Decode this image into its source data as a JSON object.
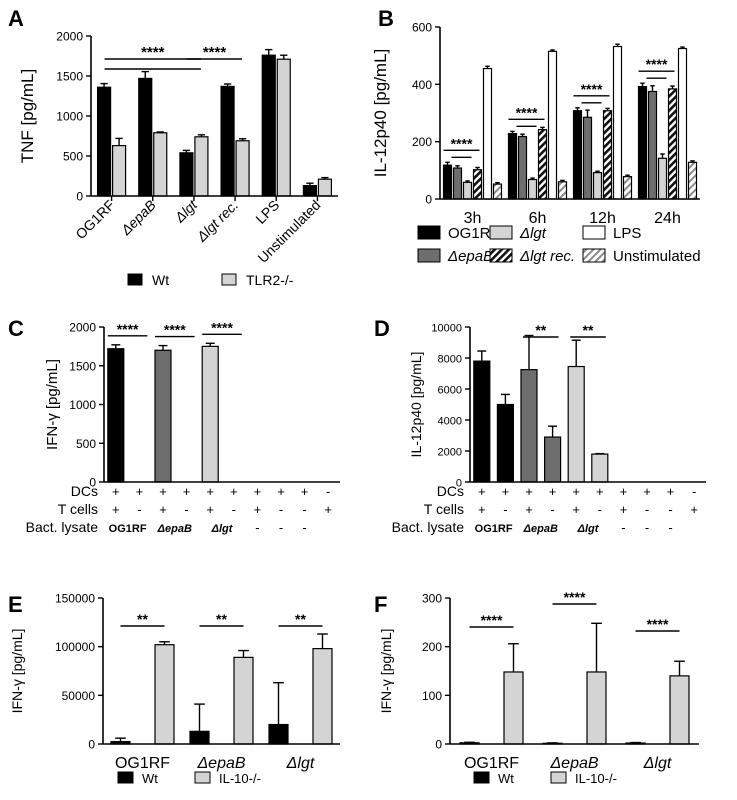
{
  "colors": {
    "wt": "#000000",
    "ko": "#d4d4d4",
    "dark_grey": "#6e6e6e",
    "white": "#ffffff",
    "black": "#000000"
  },
  "chart_data": [
    {
      "panel": "A",
      "type": "bar",
      "ylabel": "TNF [pg/mL]",
      "ylim": [
        0,
        2000
      ],
      "yticks": [
        "0",
        "500",
        "1000",
        "1500",
        "2000"
      ],
      "categories": [
        "OG1RF",
        "ΔepaB",
        "Δlgt",
        "Δlgt rec.",
        "LPS",
        "Unstimulated"
      ],
      "categories_italic": [
        false,
        true,
        true,
        true,
        false,
        false
      ],
      "series": [
        {
          "name": "Wt",
          "values": [
            1360,
            1470,
            540,
            1370,
            1760,
            130
          ],
          "errors": [
            45,
            85,
            30,
            30,
            70,
            30
          ]
        },
        {
          "name": "TLR2-/-",
          "values": [
            630,
            790,
            740,
            690,
            1710,
            210
          ],
          "errors": [
            90,
            10,
            25,
            25,
            50,
            20
          ]
        }
      ],
      "significance": [
        "****",
        "****"
      ],
      "legend": [
        "Wt",
        "TLR2-/-"
      ]
    },
    {
      "panel": "B",
      "type": "bar",
      "ylabel": "IL-12p40 [pg/mL]",
      "ylim": [
        0,
        600
      ],
      "yticks": [
        "0",
        "200",
        "400",
        "600"
      ],
      "categories": [
        "3h",
        "6h",
        "12h",
        "24h"
      ],
      "series": [
        {
          "name": "OG1RF",
          "values": [
            118,
            228,
            308,
            392
          ],
          "errors": [
            10,
            8,
            10,
            12
          ]
        },
        {
          "name": "ΔepaB",
          "values": [
            108,
            218,
            285,
            375
          ],
          "errors": [
            8,
            8,
            25,
            20
          ]
        },
        {
          "name": "Δlgt",
          "values": [
            58,
            68,
            92,
            142
          ],
          "errors": [
            5,
            5,
            5,
            15
          ]
        },
        {
          "name": "Δlgt rec.",
          "values": [
            102,
            242,
            308,
            384
          ],
          "errors": [
            8,
            8,
            8,
            10
          ]
        },
        {
          "name": "LPS",
          "values": [
            455,
            515,
            532,
            525
          ],
          "errors": [
            8,
            5,
            8,
            5
          ]
        },
        {
          "name": "Unstimulated",
          "values": [
            52,
            60,
            78,
            128
          ],
          "errors": [
            5,
            5,
            5,
            5
          ]
        }
      ],
      "significance": [
        "****",
        "****",
        "****",
        "****"
      ],
      "legend": [
        "OG1RF",
        "ΔepaB",
        "Δlgt",
        "Δlgt rec.",
        "LPS",
        "Unstimulated"
      ],
      "legend_italic": [
        false,
        true,
        true,
        true,
        false,
        false
      ]
    },
    {
      "panel": "C",
      "type": "bar",
      "ylabel": "IFN-γ [pg/mL]",
      "ylim": [
        0,
        2000
      ],
      "yticks": [
        "0",
        "500",
        "1000",
        "1500",
        "2000"
      ],
      "values": [
        1720,
        0,
        1700,
        0,
        1750,
        0,
        0,
        0,
        0,
        0
      ],
      "errors": [
        50,
        0,
        60,
        0,
        40,
        0,
        0,
        0,
        0,
        0
      ],
      "bar_color_keys": [
        "black",
        "black",
        "dark_grey",
        "dark_grey",
        "ko",
        "ko",
        "ko",
        "ko",
        "ko",
        "ko"
      ],
      "significance": [
        "****",
        "****",
        "****"
      ],
      "row_labels": [
        "DCs",
        "T cells",
        "Bact. lysate"
      ],
      "rows": [
        [
          "+",
          "+",
          "+",
          "+",
          "+",
          "+",
          "+",
          "+",
          "+",
          "-"
        ],
        [
          "+",
          "-",
          "+",
          "-",
          "+",
          "-",
          "+",
          "-",
          "-",
          "+"
        ]
      ],
      "lysate_labels": [
        "OG1RF",
        "ΔepaB",
        "Δlgt",
        "-",
        "-",
        "-"
      ],
      "lysate_italic": [
        false,
        true,
        true,
        false,
        false,
        false
      ]
    },
    {
      "panel": "D",
      "type": "bar",
      "ylabel": "IL-12p40 [pg/mL]",
      "ylim": [
        0,
        10000
      ],
      "yticks": [
        "0",
        "2000",
        "4000",
        "6000",
        "8000",
        "10000"
      ],
      "values": [
        7800,
        5000,
        7250,
        2900,
        7450,
        1800,
        0,
        0,
        0,
        0
      ],
      "errors": [
        650,
        650,
        2200,
        700,
        1700,
        30,
        0,
        0,
        0,
        0
      ],
      "bar_color_keys": [
        "black",
        "black",
        "dark_grey",
        "dark_grey",
        "ko",
        "ko",
        "ko",
        "ko",
        "ko",
        "ko"
      ],
      "significance": [
        "**",
        "**"
      ],
      "row_labels": [
        "DCs",
        "T cells",
        "Bact. lysate"
      ],
      "rows": [
        [
          "+",
          "+",
          "+",
          "+",
          "+",
          "+",
          "+",
          "+",
          "+",
          "-"
        ],
        [
          "+",
          "-",
          "+",
          "-",
          "+",
          "-",
          "+",
          "-",
          "-",
          "+"
        ]
      ],
      "lysate_labels": [
        "OG1RF",
        "ΔepaB",
        "Δlgt",
        "-",
        "-",
        "-"
      ],
      "lysate_italic": [
        false,
        true,
        true,
        false,
        false,
        false
      ]
    },
    {
      "panel": "E",
      "type": "bar",
      "ylabel": "IFN-γ [pg/mL]",
      "ylim": [
        0,
        150000
      ],
      "yticks": [
        "0",
        "50000",
        "100000",
        "150000"
      ],
      "categories": [
        "OG1RF",
        "ΔepaB",
        "Δlgt"
      ],
      "categories_italic": [
        false,
        true,
        true
      ],
      "series": [
        {
          "name": "Wt",
          "values": [
            2500,
            13000,
            20000
          ],
          "errors": [
            3500,
            28000,
            43000
          ]
        },
        {
          "name": "IL-10-/-",
          "values": [
            102000,
            89000,
            98000
          ],
          "errors": [
            3000,
            7000,
            15000
          ]
        }
      ],
      "significance": [
        "**",
        "**",
        "**"
      ],
      "legend": [
        "Wt",
        "IL-10-/-"
      ]
    },
    {
      "panel": "F",
      "type": "bar",
      "ylabel": "IFN-γ [pg/mL]",
      "ylim": [
        0,
        300
      ],
      "yticks": [
        "0",
        "100",
        "200",
        "300"
      ],
      "categories": [
        "OG1RF",
        "ΔepaB",
        "Δlgt"
      ],
      "categories_italic": [
        false,
        true,
        true
      ],
      "series": [
        {
          "name": "Wt",
          "values": [
            2.5,
            1.5,
            2
          ],
          "errors": [
            1,
            0.8,
            1
          ]
        },
        {
          "name": "IL-10-/-",
          "values": [
            148,
            148,
            140
          ],
          "errors": [
            58,
            100,
            30
          ]
        }
      ],
      "significance": [
        "****",
        "****",
        "****"
      ],
      "legend": [
        "Wt",
        "IL-10-/-"
      ]
    }
  ]
}
